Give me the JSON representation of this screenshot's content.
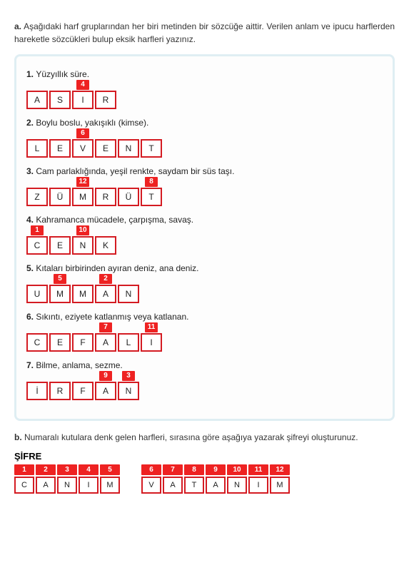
{
  "intro": {
    "label": "a.",
    "text": "Aşağıdaki harf gruplarından her biri metinden bir sözcüğe aittir. Verilen anlam ve ipucu harflerden hareketle sözcükleri bulup eksik harfleri yazınız."
  },
  "clues": [
    {
      "num": "1.",
      "text": "Yüzyıllık süre.",
      "cells": [
        {
          "letter": "A",
          "num": null
        },
        {
          "letter": "S",
          "num": null
        },
        {
          "letter": "I",
          "num": "4"
        },
        {
          "letter": "R",
          "num": null
        }
      ]
    },
    {
      "num": "2.",
      "text": "Boylu boslu, yakışıklı (kimse).",
      "cells": [
        {
          "letter": "L",
          "num": null
        },
        {
          "letter": "E",
          "num": null
        },
        {
          "letter": "V",
          "num": "6"
        },
        {
          "letter": "E",
          "num": null
        },
        {
          "letter": "N",
          "num": null
        },
        {
          "letter": "T",
          "num": null
        }
      ]
    },
    {
      "num": "3.",
      "text": "Cam parlaklığında, yeşil renkte, saydam bir süs taşı.",
      "cells": [
        {
          "letter": "Z",
          "num": null
        },
        {
          "letter": "Ü",
          "num": null
        },
        {
          "letter": "M",
          "num": "12"
        },
        {
          "letter": "R",
          "num": null
        },
        {
          "letter": "Ü",
          "num": null
        },
        {
          "letter": "T",
          "num": "8"
        }
      ]
    },
    {
      "num": "4.",
      "text": "Kahramanca mücadele, çarpışma, savaş.",
      "cells": [
        {
          "letter": "C",
          "num": "1"
        },
        {
          "letter": "E",
          "num": null
        },
        {
          "letter": "N",
          "num": "10"
        },
        {
          "letter": "K",
          "num": null
        }
      ]
    },
    {
      "num": "5.",
      "text": "Kıtaları birbirinden ayıran deniz, ana deniz.",
      "cells": [
        {
          "letter": "U",
          "num": null
        },
        {
          "letter": "M",
          "num": "5"
        },
        {
          "letter": "M",
          "num": null
        },
        {
          "letter": "A",
          "num": "2"
        },
        {
          "letter": "N",
          "num": null
        }
      ]
    },
    {
      "num": "6.",
      "text": "Sıkıntı, eziyete katlanmış veya katlanan.",
      "cells": [
        {
          "letter": "C",
          "num": null
        },
        {
          "letter": "E",
          "num": null
        },
        {
          "letter": "F",
          "num": null
        },
        {
          "letter": "A",
          "num": "7"
        },
        {
          "letter": "L",
          "num": null
        },
        {
          "letter": "I",
          "num": "11"
        }
      ]
    },
    {
      "num": "7.",
      "text": "Bilme, anlama, sezme.",
      "cells": [
        {
          "letter": "İ",
          "num": null
        },
        {
          "letter": "R",
          "num": null
        },
        {
          "letter": "F",
          "num": null
        },
        {
          "letter": "A",
          "num": "9"
        },
        {
          "letter": "N",
          "num": "3"
        }
      ]
    }
  ],
  "sectionB": {
    "label": "b.",
    "text": "Numaralı kutulara denk gelen harfleri, sırasına göre aşağıya yazarak şifreyi oluşturunuz."
  },
  "sifre": {
    "title": "ŞİFRE",
    "group1": [
      {
        "num": "1",
        "letter": "C"
      },
      {
        "num": "2",
        "letter": "A"
      },
      {
        "num": "3",
        "letter": "N"
      },
      {
        "num": "4",
        "letter": "I"
      },
      {
        "num": "5",
        "letter": "M"
      }
    ],
    "group2": [
      {
        "num": "6",
        "letter": "V"
      },
      {
        "num": "7",
        "letter": "A"
      },
      {
        "num": "8",
        "letter": "T"
      },
      {
        "num": "9",
        "letter": "A"
      },
      {
        "num": "10",
        "letter": "N"
      },
      {
        "num": "11",
        "letter": "I"
      },
      {
        "num": "12",
        "letter": "M"
      }
    ]
  }
}
